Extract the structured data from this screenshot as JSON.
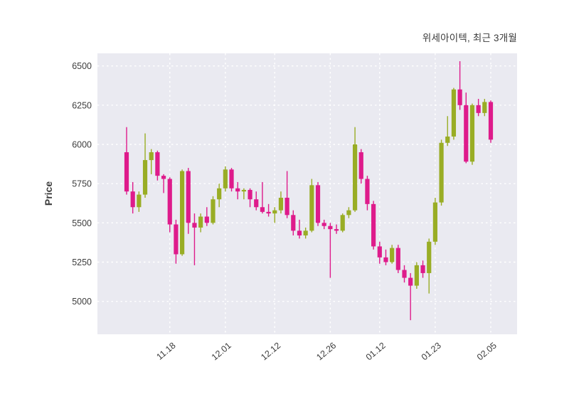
{
  "chart_data": {
    "type": "candlestick",
    "title": "위세아이텍, 최근 3개월",
    "ylabel": "Price",
    "ylim": [
      4790,
      6580
    ],
    "y_ticks": [
      5000,
      5250,
      5500,
      5750,
      6000,
      6250,
      6500
    ],
    "x_ticks": [
      {
        "index": 7,
        "label": "11.18"
      },
      {
        "index": 16,
        "label": "12.01"
      },
      {
        "index": 24,
        "label": "12.12"
      },
      {
        "index": 33,
        "label": "12.26"
      },
      {
        "index": 41,
        "label": "01.12"
      },
      {
        "index": 50,
        "label": "01.23"
      },
      {
        "index": 59,
        "label": "02.05"
      }
    ],
    "grid": "white-dashed",
    "legend": "none",
    "candle_format": [
      "open",
      "high",
      "low",
      "close"
    ],
    "colors": {
      "up": "#99ad25",
      "down": "#de1b8b",
      "panel_bg": "#eaeaf1",
      "tick_text": "#3d3d3d"
    },
    "candles": [
      [
        5950,
        6110,
        5680,
        5700
      ],
      [
        5700,
        5760,
        5560,
        5600
      ],
      [
        5600,
        5700,
        5570,
        5680
      ],
      [
        5680,
        6070,
        5660,
        5900
      ],
      [
        5900,
        5970,
        5810,
        5950
      ],
      [
        5950,
        5960,
        5770,
        5800
      ],
      [
        5800,
        5810,
        5690,
        5780
      ],
      [
        5780,
        5790,
        5440,
        5490
      ],
      [
        5490,
        5520,
        5240,
        5300
      ],
      [
        5300,
        5840,
        5290,
        5830
      ],
      [
        5830,
        5850,
        5430,
        5500
      ],
      [
        5500,
        5560,
        5230,
        5470
      ],
      [
        5470,
        5560,
        5440,
        5540
      ],
      [
        5540,
        5600,
        5480,
        5500
      ],
      [
        5500,
        5670,
        5490,
        5650
      ],
      [
        5650,
        5750,
        5600,
        5720
      ],
      [
        5720,
        5860,
        5700,
        5840
      ],
      [
        5840,
        5850,
        5700,
        5720
      ],
      [
        5720,
        5760,
        5650,
        5700
      ],
      [
        5700,
        5720,
        5650,
        5710
      ],
      [
        5710,
        5720,
        5600,
        5650
      ],
      [
        5650,
        5700,
        5580,
        5600
      ],
      [
        5600,
        5760,
        5560,
        5570
      ],
      [
        5570,
        5620,
        5540,
        5560
      ],
      [
        5560,
        5600,
        5500,
        5580
      ],
      [
        5580,
        5700,
        5560,
        5660
      ],
      [
        5660,
        5830,
        5530,
        5550
      ],
      [
        5550,
        5580,
        5420,
        5450
      ],
      [
        5450,
        5520,
        5400,
        5420
      ],
      [
        5420,
        5470,
        5400,
        5450
      ],
      [
        5450,
        5780,
        5440,
        5740
      ],
      [
        5740,
        5760,
        5480,
        5500
      ],
      [
        5500,
        5520,
        5460,
        5480
      ],
      [
        5480,
        5500,
        5150,
        5460
      ],
      [
        5460,
        5490,
        5430,
        5450
      ],
      [
        5450,
        5560,
        5440,
        5550
      ],
      [
        5550,
        5600,
        5530,
        5580
      ],
      [
        5580,
        6110,
        5570,
        6000
      ],
      [
        5950,
        5970,
        5750,
        5780
      ],
      [
        5780,
        5800,
        5580,
        5620
      ],
      [
        5620,
        5640,
        5330,
        5350
      ],
      [
        5350,
        5380,
        5240,
        5280
      ],
      [
        5280,
        5330,
        5230,
        5250
      ],
      [
        5250,
        5360,
        5240,
        5340
      ],
      [
        5340,
        5360,
        5180,
        5200
      ],
      [
        5200,
        5230,
        5120,
        5150
      ],
      [
        5150,
        5180,
        4880,
        5100
      ],
      [
        5100,
        5250,
        5080,
        5230
      ],
      [
        5230,
        5260,
        5150,
        5180
      ],
      [
        5180,
        5400,
        5050,
        5380
      ],
      [
        5380,
        5660,
        5360,
        5630
      ],
      [
        5630,
        6030,
        5610,
        6010
      ],
      [
        6010,
        6180,
        5990,
        6050
      ],
      [
        6050,
        6360,
        6030,
        6350
      ],
      [
        6350,
        6530,
        6220,
        6250
      ],
      [
        6250,
        6330,
        5880,
        5890
      ],
      [
        5890,
        6260,
        5870,
        6250
      ],
      [
        6250,
        6290,
        6180,
        6200
      ],
      [
        6200,
        6290,
        6180,
        6270
      ],
      [
        6270,
        6280,
        6010,
        6030
      ]
    ]
  }
}
